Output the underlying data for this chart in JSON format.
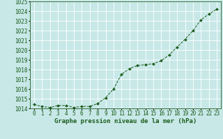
{
  "x": [
    0,
    1,
    2,
    3,
    4,
    5,
    6,
    7,
    8,
    9,
    10,
    11,
    12,
    13,
    14,
    15,
    16,
    17,
    18,
    19,
    20,
    21,
    22,
    23
  ],
  "y": [
    1014.4,
    1014.2,
    1014.1,
    1014.3,
    1014.3,
    1014.1,
    1014.2,
    1014.2,
    1014.5,
    1015.1,
    1016.0,
    1017.5,
    1018.1,
    1018.4,
    1018.5,
    1018.6,
    1018.9,
    1019.5,
    1020.3,
    1021.1,
    1022.0,
    1023.1,
    1023.7,
    1024.2
  ],
  "ylim": [
    1014,
    1025
  ],
  "yticks": [
    1014,
    1015,
    1016,
    1017,
    1018,
    1019,
    1020,
    1021,
    1022,
    1023,
    1024,
    1025
  ],
  "xlabel": "Graphe pression niveau de la mer (hPa)",
  "line_color": "#1a5c1a",
  "marker_color": "#1a5c1a",
  "bg_color": "#c8e8e8",
  "grid_color": "#ffffff",
  "tick_color": "#1a5c1a",
  "label_color": "#1a5c1a",
  "xlabel_fontsize": 6.5,
  "tick_fontsize": 5.5
}
